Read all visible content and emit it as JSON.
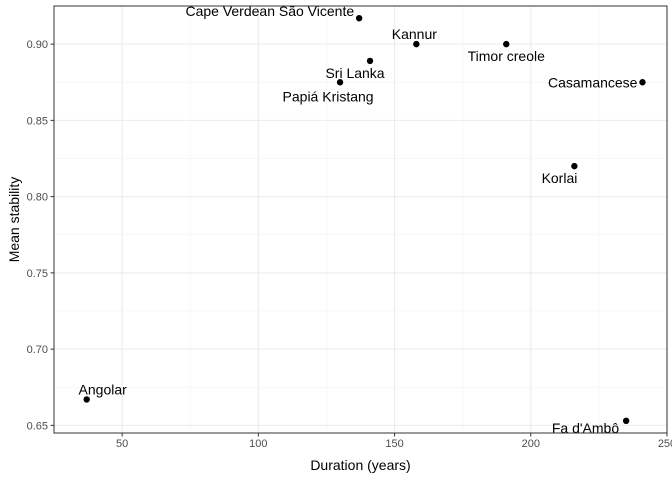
{
  "chart_data": {
    "type": "scatter",
    "title": "",
    "xlabel": "Duration (years)",
    "ylabel": "Mean stability",
    "xlim": [
      25,
      250
    ],
    "ylim": [
      0.645,
      0.925
    ],
    "x_ticks": [
      50,
      100,
      150,
      200,
      250
    ],
    "y_ticks": [
      0.65,
      0.7,
      0.75,
      0.8,
      0.85,
      0.9
    ],
    "x_tick_labels": [
      "50",
      "100",
      "150",
      "200",
      "250"
    ],
    "y_tick_labels": [
      "0.65",
      "0.70",
      "0.75",
      "0.80",
      "0.85",
      "0.90"
    ],
    "grid": true,
    "points": [
      {
        "label": "Cape Verdean São Vicente",
        "x": 137,
        "y": 0.917,
        "label_pos": "left"
      },
      {
        "label": "Kannur",
        "x": 158,
        "y": 0.9,
        "label_pos": "above"
      },
      {
        "label": "Timor creole",
        "x": 191,
        "y": 0.9,
        "label_pos": "below"
      },
      {
        "label": "Sri Lanka",
        "x": 141,
        "y": 0.889,
        "label_pos": "below"
      },
      {
        "label": "Papiá Kristang",
        "x": 130,
        "y": 0.875,
        "label_pos": "below"
      },
      {
        "label": "Casamancese",
        "x": 241,
        "y": 0.875,
        "label_pos": "left"
      },
      {
        "label": "Korlai",
        "x": 216,
        "y": 0.82,
        "label_pos": "below"
      },
      {
        "label": "Angolar",
        "x": 37,
        "y": 0.667,
        "label_pos": "above"
      },
      {
        "label": "Fa d'Ambô",
        "x": 235,
        "y": 0.653,
        "label_pos": "left"
      }
    ]
  }
}
